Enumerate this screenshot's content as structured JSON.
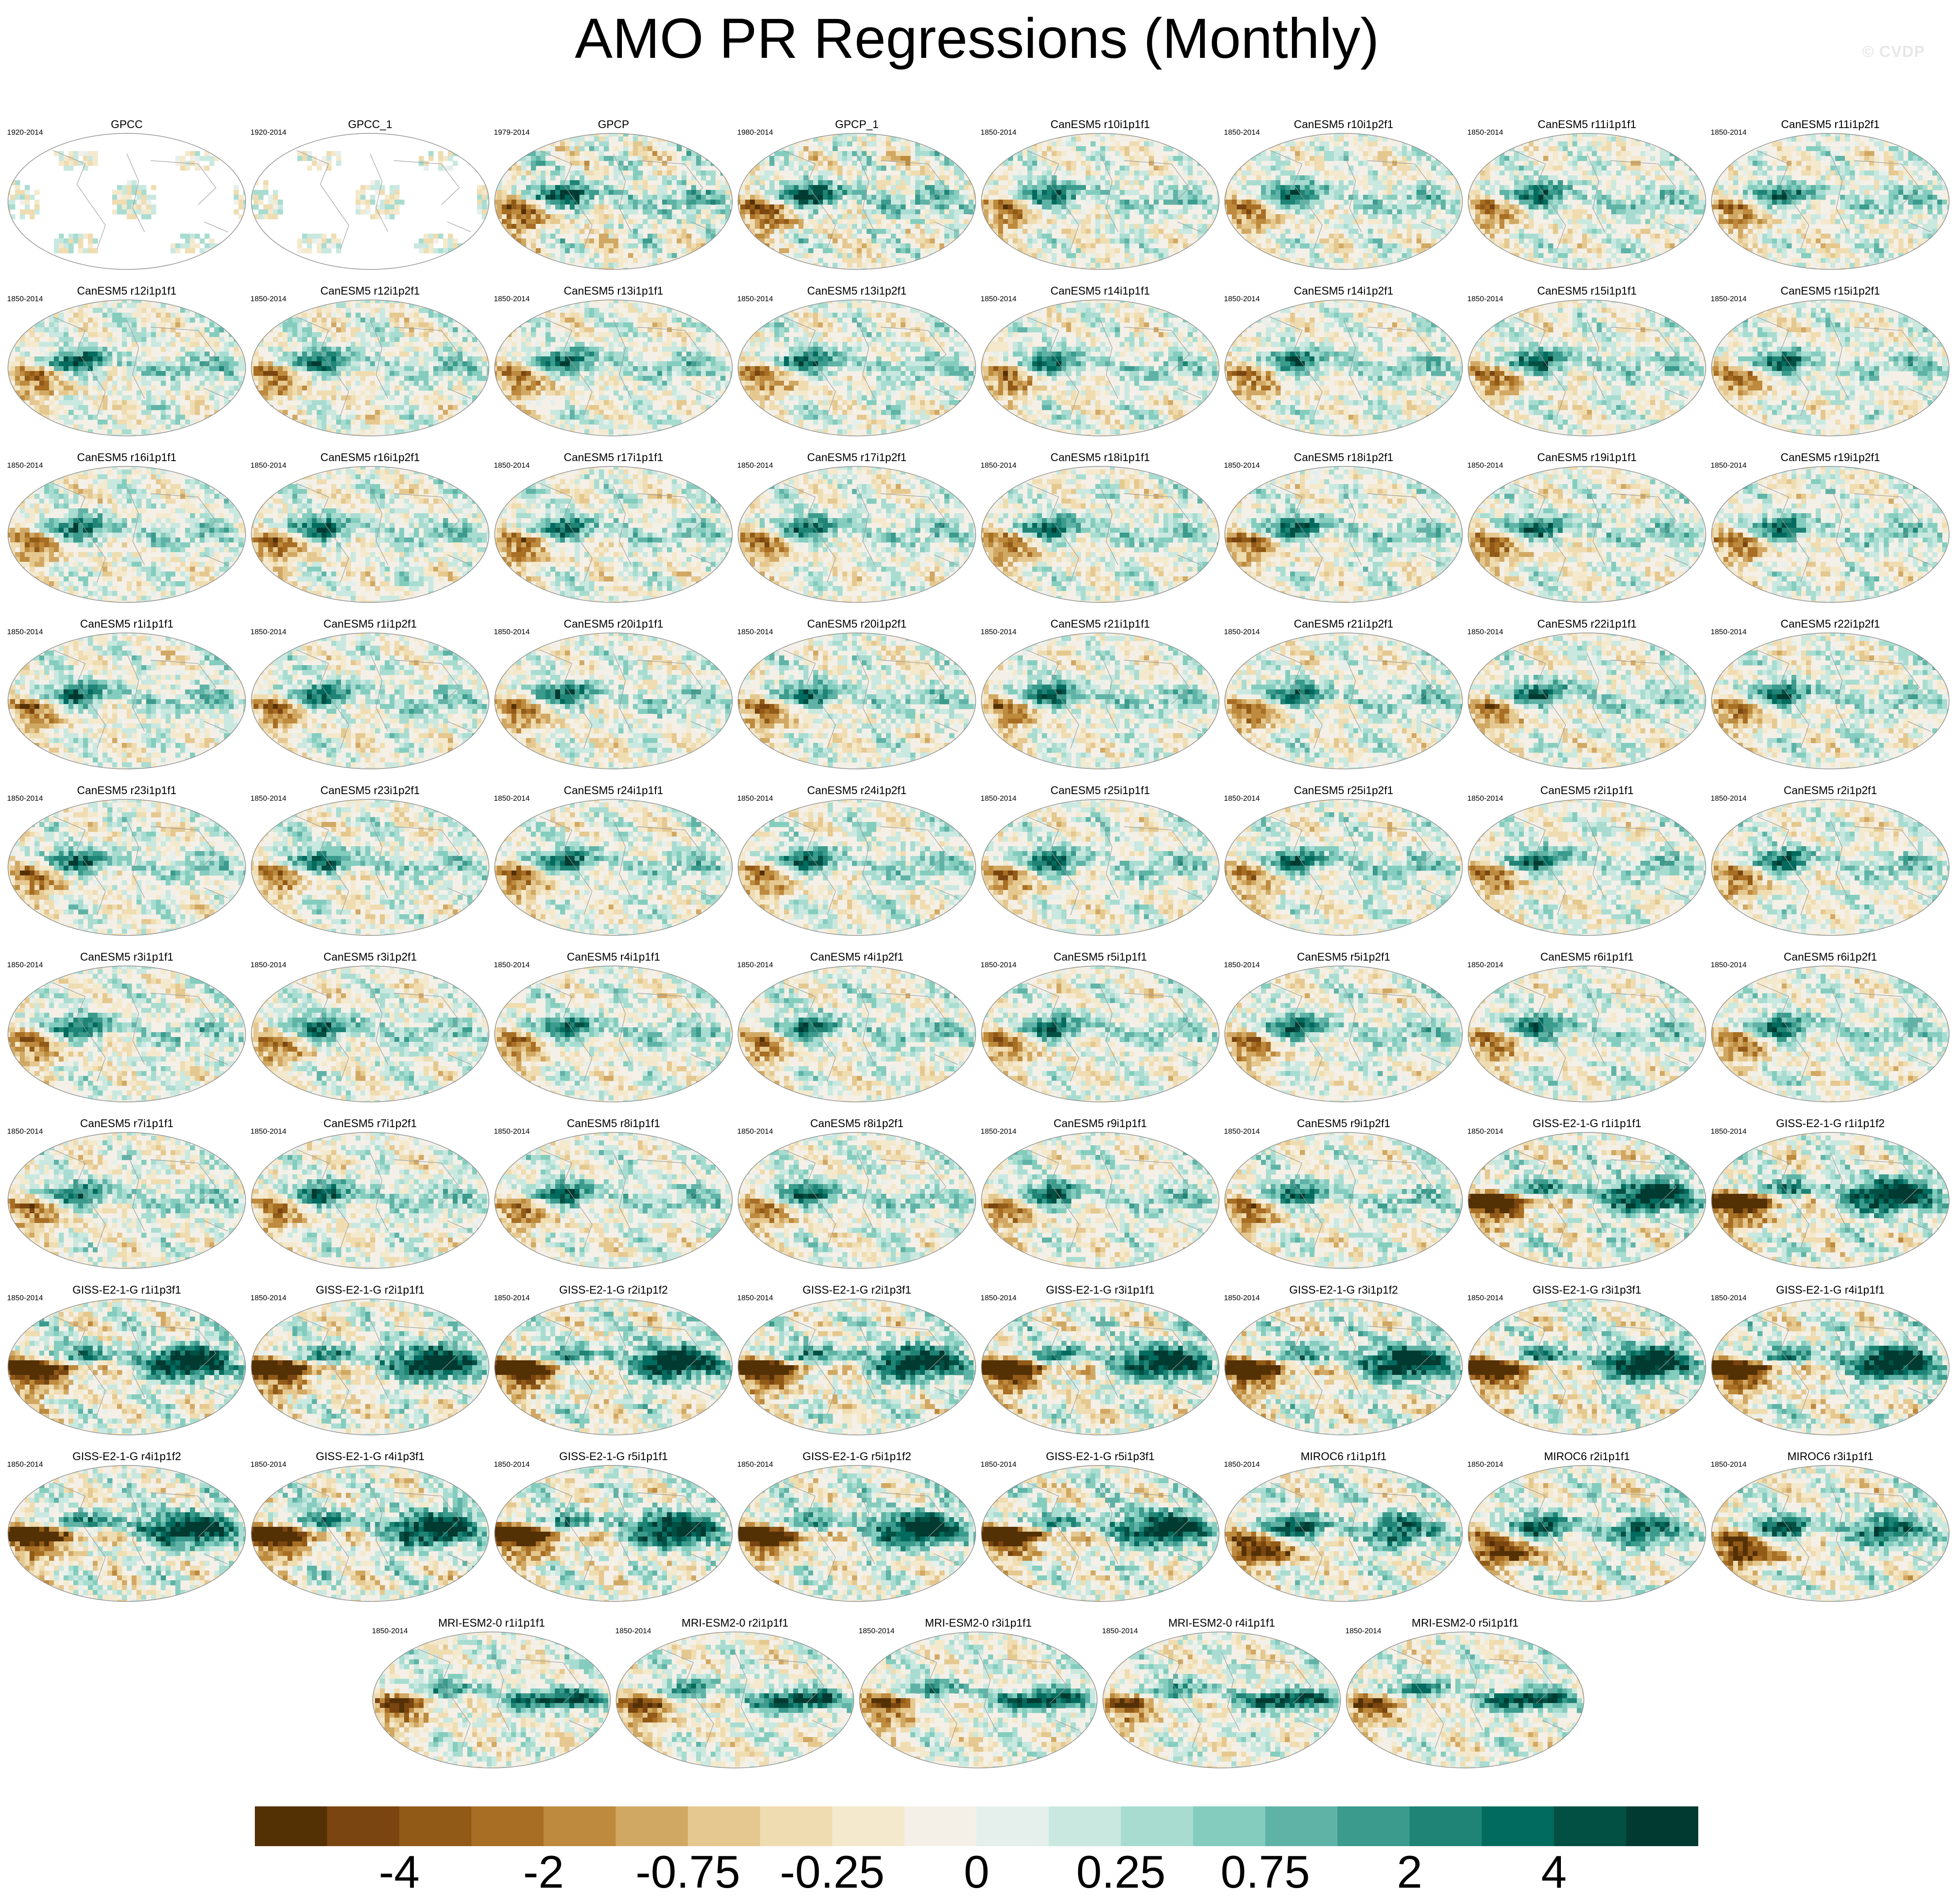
{
  "chart_data": {
    "type": "heatmap",
    "title": "AMO PR Regressions (Monthly)",
    "watermark": "© CVDP",
    "colorbar": {
      "colors": [
        "#543005",
        "#7a4510",
        "#925a17",
        "#a86e24",
        "#bd8a3e",
        "#d1a863",
        "#e5c88f",
        "#efdcb0",
        "#f4e9cc",
        "#f4f0e8",
        "#e5f0ec",
        "#c9e8e0",
        "#a8dcd1",
        "#84cdbe",
        "#5fb3a6",
        "#3b9b8d",
        "#1f8475",
        "#006b5e",
        "#024f44",
        "#003a30"
      ],
      "tick_labels": [
        "-4",
        "-2",
        "-0.75",
        "-0.25",
        "0",
        "0.25",
        "0.75",
        "2",
        "4"
      ],
      "tick_boundary_index": [
        2,
        4,
        6,
        8,
        10,
        12,
        14,
        16,
        18
      ]
    },
    "panels": [
      {
        "title": "GPCC",
        "years": "1920-2014"
      },
      {
        "title": "GPCC_1",
        "years": "1920-2014"
      },
      {
        "title": "GPCP",
        "years": "1979-2014"
      },
      {
        "title": "GPCP_1",
        "years": "1980-2014"
      },
      {
        "title": "CanESM5 r10i1p1f1",
        "years": "1850-2014"
      },
      {
        "title": "CanESM5 r10i1p2f1",
        "years": "1850-2014"
      },
      {
        "title": "CanESM5 r11i1p1f1",
        "years": "1850-2014"
      },
      {
        "title": "CanESM5 r11i1p2f1",
        "years": "1850-2014"
      },
      {
        "title": "CanESM5 r12i1p1f1",
        "years": "1850-2014"
      },
      {
        "title": "CanESM5 r12i1p2f1",
        "years": "1850-2014"
      },
      {
        "title": "CanESM5 r13i1p1f1",
        "years": "1850-2014"
      },
      {
        "title": "CanESM5 r13i1p2f1",
        "years": "1850-2014"
      },
      {
        "title": "CanESM5 r14i1p1f1",
        "years": "1850-2014"
      },
      {
        "title": "CanESM5 r14i1p2f1",
        "years": "1850-2014"
      },
      {
        "title": "CanESM5 r15i1p1f1",
        "years": "1850-2014"
      },
      {
        "title": "CanESM5 r15i1p2f1",
        "years": "1850-2014"
      },
      {
        "title": "CanESM5 r16i1p1f1",
        "years": "1850-2014"
      },
      {
        "title": "CanESM5 r16i1p2f1",
        "years": "1850-2014"
      },
      {
        "title": "CanESM5 r17i1p1f1",
        "years": "1850-2014"
      },
      {
        "title": "CanESM5 r17i1p2f1",
        "years": "1850-2014"
      },
      {
        "title": "CanESM5 r18i1p1f1",
        "years": "1850-2014"
      },
      {
        "title": "CanESM5 r18i1p2f1",
        "years": "1850-2014"
      },
      {
        "title": "CanESM5 r19i1p1f1",
        "years": "1850-2014"
      },
      {
        "title": "CanESM5 r19i1p2f1",
        "years": "1850-2014"
      },
      {
        "title": "CanESM5 r1i1p1f1",
        "years": "1850-2014"
      },
      {
        "title": "CanESM5 r1i1p2f1",
        "years": "1850-2014"
      },
      {
        "title": "CanESM5 r20i1p1f1",
        "years": "1850-2014"
      },
      {
        "title": "CanESM5 r20i1p2f1",
        "years": "1850-2014"
      },
      {
        "title": "CanESM5 r21i1p1f1",
        "years": "1850-2014"
      },
      {
        "title": "CanESM5 r21i1p2f1",
        "years": "1850-2014"
      },
      {
        "title": "CanESM5 r22i1p1f1",
        "years": "1850-2014"
      },
      {
        "title": "CanESM5 r22i1p2f1",
        "years": "1850-2014"
      },
      {
        "title": "CanESM5 r23i1p1f1",
        "years": "1850-2014"
      },
      {
        "title": "CanESM5 r23i1p2f1",
        "years": "1850-2014"
      },
      {
        "title": "CanESM5 r24i1p1f1",
        "years": "1850-2014"
      },
      {
        "title": "CanESM5 r24i1p2f1",
        "years": "1850-2014"
      },
      {
        "title": "CanESM5 r25i1p1f1",
        "years": "1850-2014"
      },
      {
        "title": "CanESM5 r25i1p2f1",
        "years": "1850-2014"
      },
      {
        "title": "CanESM5 r2i1p1f1",
        "years": "1850-2014"
      },
      {
        "title": "CanESM5 r2i1p2f1",
        "years": "1850-2014"
      },
      {
        "title": "CanESM5 r3i1p1f1",
        "years": "1850-2014"
      },
      {
        "title": "CanESM5 r3i1p2f1",
        "years": "1850-2014"
      },
      {
        "title": "CanESM5 r4i1p1f1",
        "years": "1850-2014"
      },
      {
        "title": "CanESM5 r4i1p2f1",
        "years": "1850-2014"
      },
      {
        "title": "CanESM5 r5i1p1f1",
        "years": "1850-2014"
      },
      {
        "title": "CanESM5 r5i1p2f1",
        "years": "1850-2014"
      },
      {
        "title": "CanESM5 r6i1p1f1",
        "years": "1850-2014"
      },
      {
        "title": "CanESM5 r6i1p2f1",
        "years": "1850-2014"
      },
      {
        "title": "CanESM5 r7i1p1f1",
        "years": "1850-2014"
      },
      {
        "title": "CanESM5 r7i1p2f1",
        "years": "1850-2014"
      },
      {
        "title": "CanESM5 r8i1p1f1",
        "years": "1850-2014"
      },
      {
        "title": "CanESM5 r8i1p2f1",
        "years": "1850-2014"
      },
      {
        "title": "CanESM5 r9i1p1f1",
        "years": "1850-2014"
      },
      {
        "title": "CanESM5 r9i1p2f1",
        "years": "1850-2014"
      },
      {
        "title": "GISS-E2-1-G r1i1p1f1",
        "years": "1850-2014"
      },
      {
        "title": "GISS-E2-1-G r1i1p1f2",
        "years": "1850-2014"
      },
      {
        "title": "GISS-E2-1-G r1i1p3f1",
        "years": "1850-2014"
      },
      {
        "title": "GISS-E2-1-G r2i1p1f1",
        "years": "1850-2014"
      },
      {
        "title": "GISS-E2-1-G r2i1p1f2",
        "years": "1850-2014"
      },
      {
        "title": "GISS-E2-1-G r2i1p3f1",
        "years": "1850-2014"
      },
      {
        "title": "GISS-E2-1-G r3i1p1f1",
        "years": "1850-2014"
      },
      {
        "title": "GISS-E2-1-G r3i1p1f2",
        "years": "1850-2014"
      },
      {
        "title": "GISS-E2-1-G r3i1p3f1",
        "years": "1850-2014"
      },
      {
        "title": "GISS-E2-1-G r4i1p1f1",
        "years": "1850-2014"
      },
      {
        "title": "GISS-E2-1-G r4i1p1f2",
        "years": "1850-2014"
      },
      {
        "title": "GISS-E2-1-G r4i1p3f1",
        "years": "1850-2014"
      },
      {
        "title": "GISS-E2-1-G r5i1p1f1",
        "years": "1850-2014"
      },
      {
        "title": "GISS-E2-1-G r5i1p1f2",
        "years": "1850-2014"
      },
      {
        "title": "GISS-E2-1-G r5i1p3f1",
        "years": "1850-2014"
      },
      {
        "title": "MIROC6 r1i1p1f1",
        "years": "1850-2014"
      },
      {
        "title": "MIROC6 r2i1p1f1",
        "years": "1850-2014"
      },
      {
        "title": "MIROC6 r3i1p1f1",
        "years": "1850-2014"
      },
      {
        "title": "MRI-ESM2-0 r1i1p1f1",
        "years": "1850-2014"
      },
      {
        "title": "MRI-ESM2-0 r2i1p1f1",
        "years": "1850-2014"
      },
      {
        "title": "MRI-ESM2-0 r3i1p1f1",
        "years": "1850-2014"
      },
      {
        "title": "MRI-ESM2-0 r4i1p1f1",
        "years": "1850-2014"
      },
      {
        "title": "MRI-ESM2-0 r5i1p1f1",
        "years": "1850-2014"
      }
    ]
  }
}
